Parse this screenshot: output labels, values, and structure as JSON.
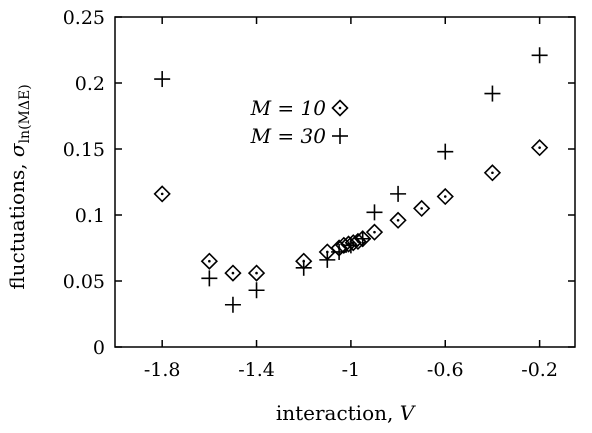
{
  "chart_data": {
    "type": "scatter",
    "xlabel_text": "interaction, ",
    "xlabel_var": "V",
    "ylabel_text": "fluctuations, ",
    "ylabel_sigma": "σ",
    "ylabel_sub": "ln(MΔE)",
    "xlim": [
      -2.0,
      -0.05
    ],
    "ylim": [
      0,
      0.25
    ],
    "xticks": [
      {
        "value": -1.8,
        "label": "-1.8"
      },
      {
        "value": -1.4,
        "label": "-1.4"
      },
      {
        "value": -1.0,
        "label": "-1"
      },
      {
        "value": -0.6,
        "label": "-0.6"
      },
      {
        "value": -0.2,
        "label": "-0.2"
      }
    ],
    "yticks": [
      {
        "value": 0,
        "label": "0"
      },
      {
        "value": 0.05,
        "label": "0.05"
      },
      {
        "value": 0.1,
        "label": "0.1"
      },
      {
        "value": 0.15,
        "label": "0.15"
      },
      {
        "value": 0.2,
        "label": "0.2"
      },
      {
        "value": 0.25,
        "label": "0.25"
      }
    ],
    "legend_position": "upper-center",
    "series": [
      {
        "name": "M = 10",
        "marker": "diamond-dot",
        "points": [
          {
            "x": -1.8,
            "y": 0.116
          },
          {
            "x": -1.6,
            "y": 0.065
          },
          {
            "x": -1.5,
            "y": 0.056
          },
          {
            "x": -1.4,
            "y": 0.056
          },
          {
            "x": -1.2,
            "y": 0.065
          },
          {
            "x": -1.1,
            "y": 0.072
          },
          {
            "x": -1.05,
            "y": 0.075
          },
          {
            "x": -1.03,
            "y": 0.077
          },
          {
            "x": -1.01,
            "y": 0.078
          },
          {
            "x": -0.99,
            "y": 0.079
          },
          {
            "x": -0.97,
            "y": 0.08
          },
          {
            "x": -0.95,
            "y": 0.082
          },
          {
            "x": -0.9,
            "y": 0.087
          },
          {
            "x": -0.8,
            "y": 0.096
          },
          {
            "x": -0.7,
            "y": 0.105
          },
          {
            "x": -0.6,
            "y": 0.114
          },
          {
            "x": -0.4,
            "y": 0.132
          },
          {
            "x": -0.2,
            "y": 0.151
          }
        ]
      },
      {
        "name": "M = 30",
        "marker": "plus",
        "points": [
          {
            "x": -1.8,
            "y": 0.203
          },
          {
            "x": -1.6,
            "y": 0.052
          },
          {
            "x": -1.5,
            "y": 0.032
          },
          {
            "x": -1.4,
            "y": 0.043
          },
          {
            "x": -1.2,
            "y": 0.06
          },
          {
            "x": -1.1,
            "y": 0.066
          },
          {
            "x": -1.05,
            "y": 0.072
          },
          {
            "x": -1.0,
            "y": 0.077
          },
          {
            "x": -0.95,
            "y": 0.082
          },
          {
            "x": -0.9,
            "y": 0.102
          },
          {
            "x": -0.8,
            "y": 0.116
          },
          {
            "x": -0.6,
            "y": 0.148
          },
          {
            "x": -0.4,
            "y": 0.192
          },
          {
            "x": -0.2,
            "y": 0.221
          }
        ]
      }
    ]
  }
}
